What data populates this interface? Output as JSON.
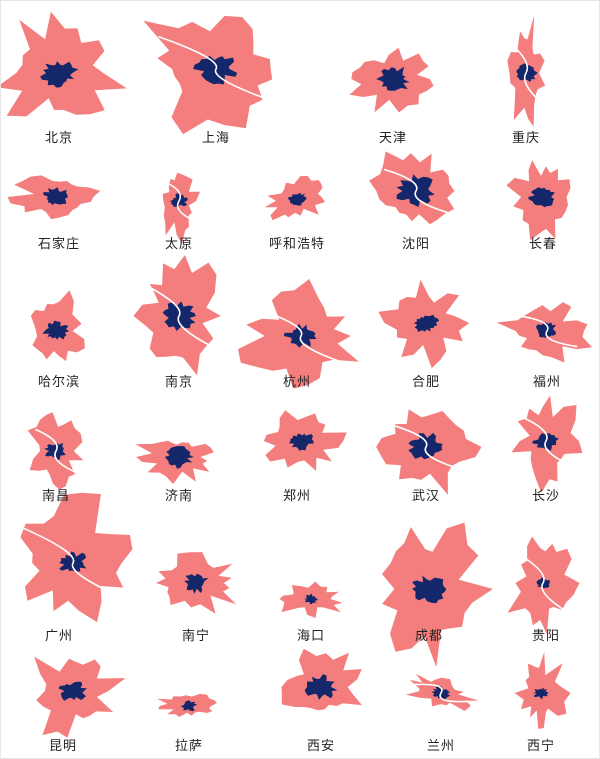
{
  "colors": {
    "urban_extent": "#f47e7e",
    "core_area": "#14276b",
    "river": "#ffffff"
  },
  "cities": [
    {
      "name": "北京"
    },
    {
      "name": "上海"
    },
    {
      "name": "天津"
    },
    {
      "name": "重庆"
    },
    {
      "name": "石家庄"
    },
    {
      "name": "太原"
    },
    {
      "name": "呼和浩特"
    },
    {
      "name": "沈阳"
    },
    {
      "name": "长春"
    },
    {
      "name": "哈尔滨"
    },
    {
      "name": "南京"
    },
    {
      "name": "杭州"
    },
    {
      "name": "合肥"
    },
    {
      "name": "福州"
    },
    {
      "name": "南昌"
    },
    {
      "name": "济南"
    },
    {
      "name": "郑州"
    },
    {
      "name": "武汉"
    },
    {
      "name": "长沙"
    },
    {
      "name": "广州"
    },
    {
      "name": "南宁"
    },
    {
      "name": "海口"
    },
    {
      "name": "成都"
    },
    {
      "name": "贵阳"
    },
    {
      "name": "昆明"
    },
    {
      "name": "拉萨"
    },
    {
      "name": "西安"
    },
    {
      "name": "兰州"
    },
    {
      "name": "西宁"
    }
  ]
}
